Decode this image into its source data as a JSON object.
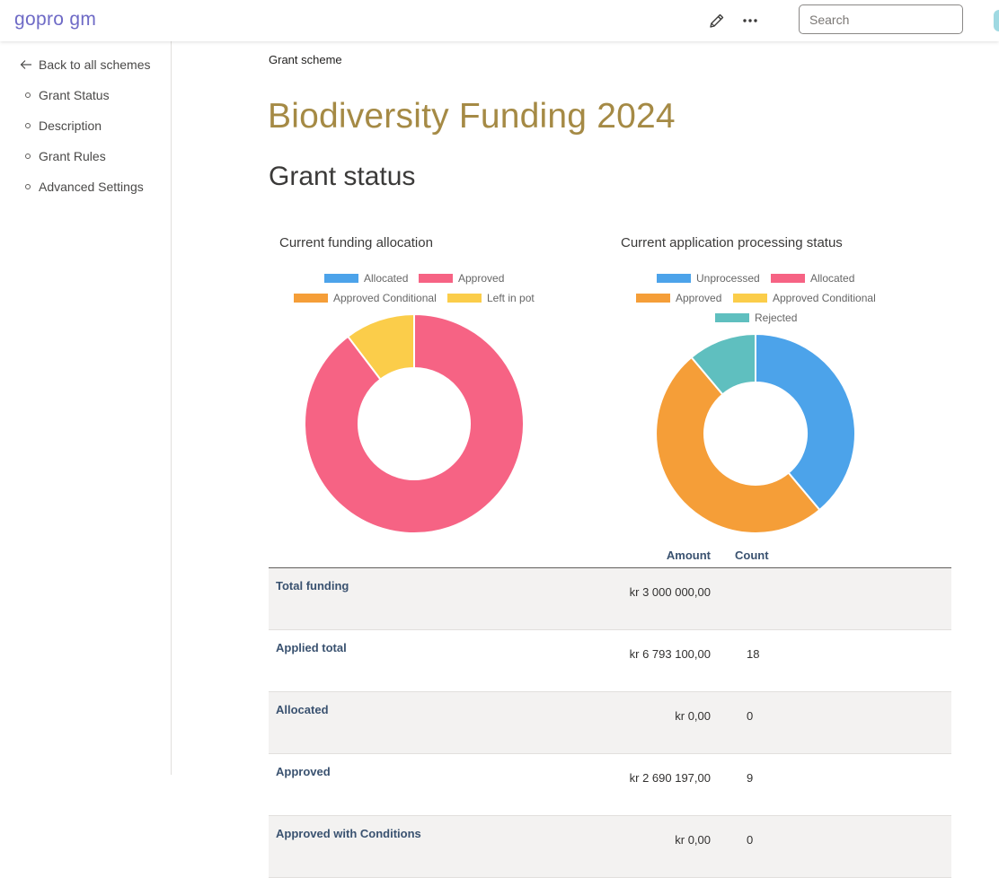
{
  "header": {
    "brand": "gopro gm",
    "edit_icon": "pencil-icon",
    "more_icon": "ellipsis-icon",
    "search_placeholder": "Search"
  },
  "sidebar": {
    "back_label": "Back to all schemes",
    "items": [
      {
        "label": "Grant Status"
      },
      {
        "label": "Description"
      },
      {
        "label": "Grant Rules"
      },
      {
        "label": "Advanced Settings"
      }
    ]
  },
  "main": {
    "breadcrumb": "Grant scheme",
    "title": "Biodiversity Funding 2024",
    "section_title": "Grant status"
  },
  "chart_data": [
    {
      "type": "pie",
      "subtype": "doughnut",
      "title": "Current funding allocation",
      "labels": [
        "Allocated",
        "Approved",
        "Approved Conditional",
        "Left in pot"
      ],
      "values": [
        0,
        2690197,
        0,
        309803
      ],
      "colors": [
        "#4ca3ea",
        "#f66384",
        "#f59e38",
        "#fbcd4a"
      ],
      "legend": "top"
    },
    {
      "type": "pie",
      "subtype": "doughnut",
      "title": "Current application processing status",
      "labels": [
        "Unprocessed",
        "Allocated",
        "Approved",
        "Approved Conditional",
        "Rejected"
      ],
      "values": [
        7,
        0,
        9,
        0,
        2
      ],
      "colors": [
        "#4ca3ea",
        "#f66384",
        "#f59e38",
        "#fbcd4a",
        "#5fbfbf"
      ],
      "legend": "top"
    }
  ],
  "table": {
    "headers": {
      "amount": "Amount",
      "count": "Count"
    },
    "rows": [
      {
        "label": "Total funding",
        "amount": "kr 3 000 000,00",
        "count": ""
      },
      {
        "label": "Applied total",
        "amount": "kr 6 793 100,00",
        "count": "18"
      },
      {
        "label": "Allocated",
        "amount": "kr 0,00",
        "count": "0"
      },
      {
        "label": "Approved",
        "amount": "kr 2 690 197,00",
        "count": "9"
      },
      {
        "label": "Approved with Conditions",
        "amount": "kr 0,00",
        "count": "0"
      }
    ]
  }
}
